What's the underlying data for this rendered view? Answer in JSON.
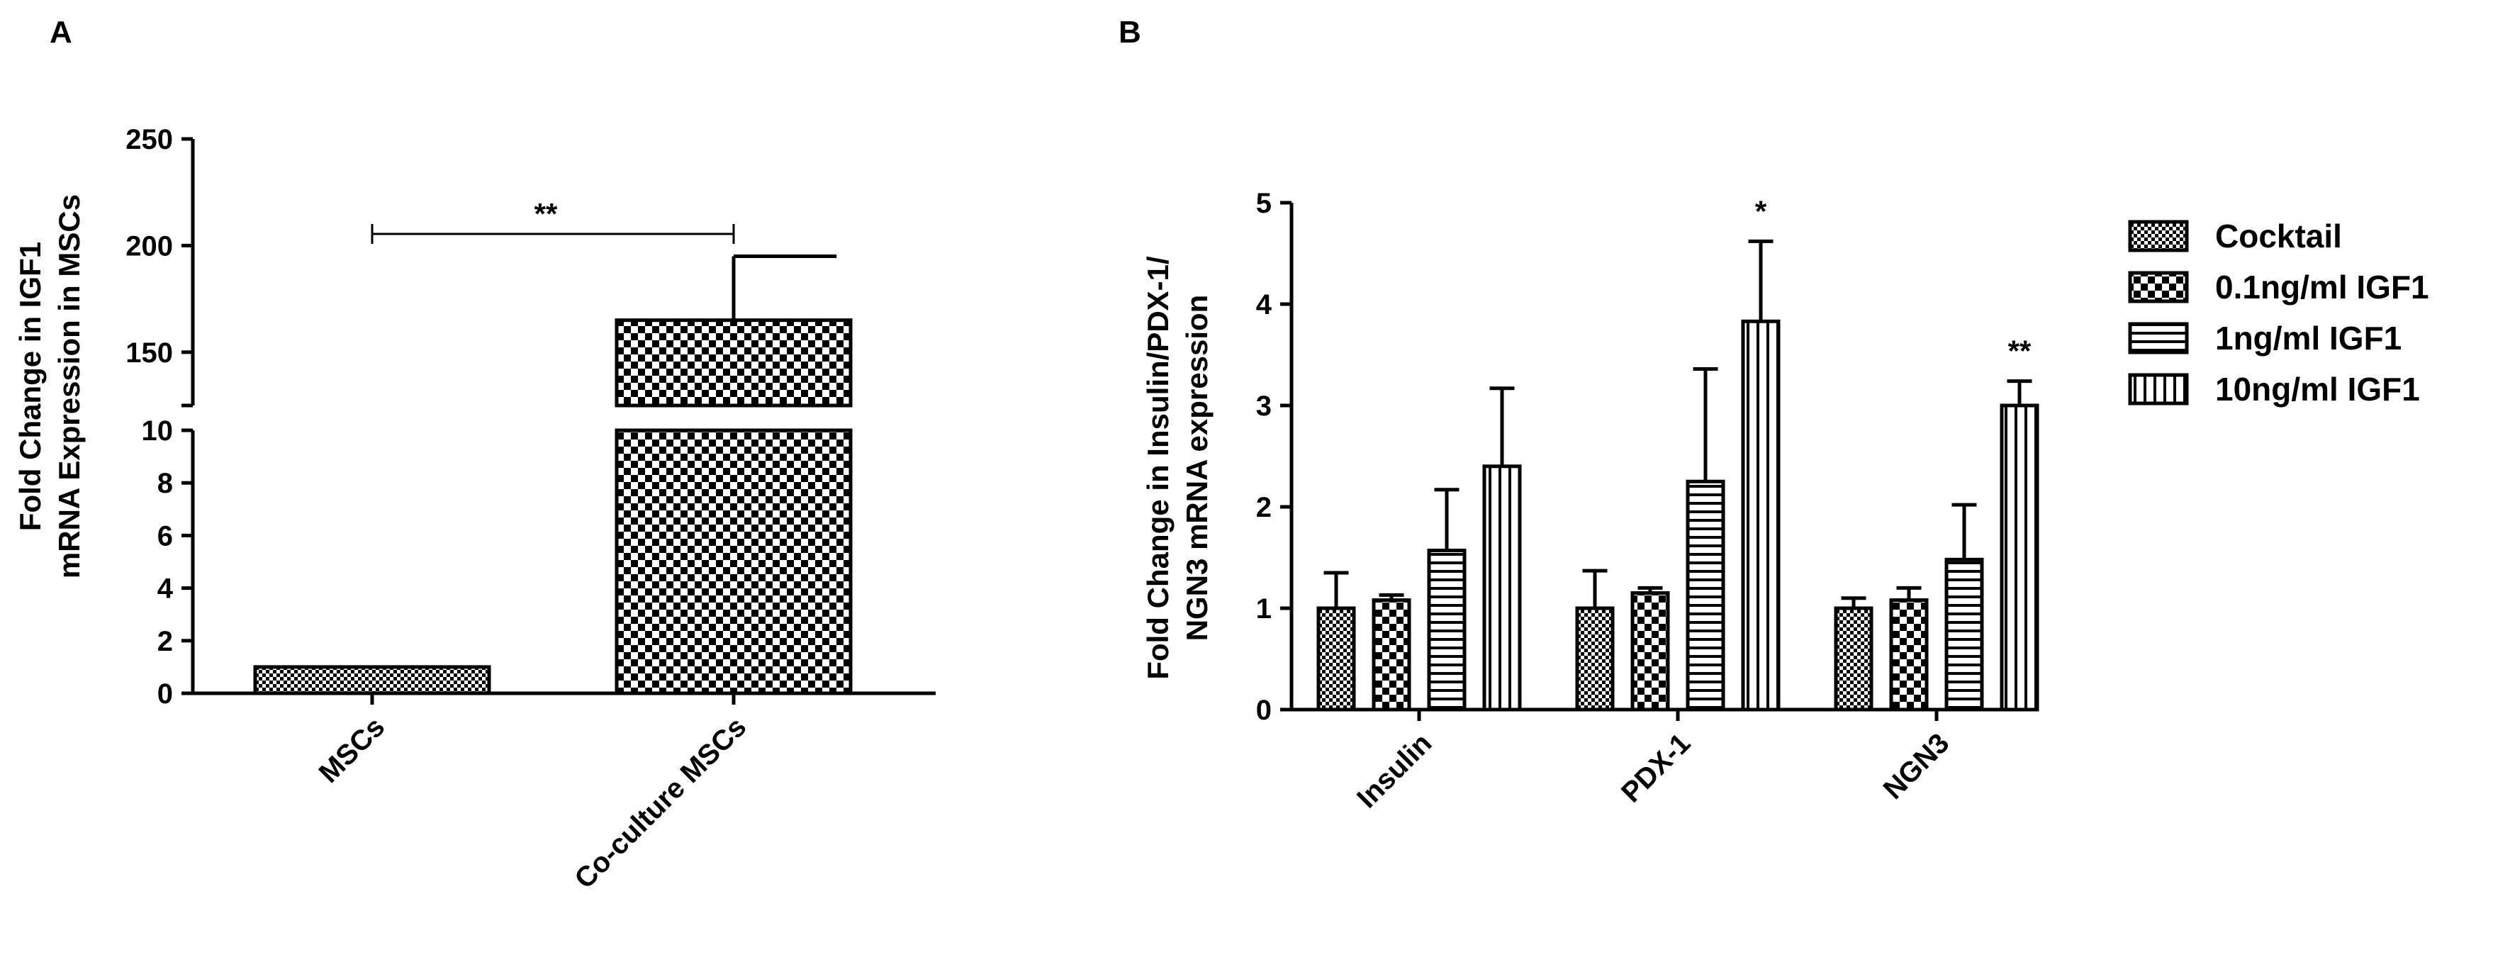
{
  "chart_data": [
    {
      "panel_label": "A",
      "type": "bar",
      "categories": [
        "MSCs",
        "Co-culture MSCs"
      ],
      "values": [
        1.0,
        165
      ],
      "error_upper": [
        1.05,
        195
      ],
      "patterns": [
        "fine-check",
        "large-check"
      ],
      "ylabel_lines": [
        "Fold Change in IGF1",
        "mRNA Expression in MSCs"
      ],
      "axis_break": {
        "lower": {
          "range": [
            0,
            10
          ],
          "ticks": [
            "0",
            "2",
            "4",
            "6",
            "8",
            "10"
          ]
        },
        "upper": {
          "range": [
            125,
            250
          ],
          "ticks": [
            "150",
            "200",
            "250"
          ]
        }
      },
      "significance": {
        "from": "MSCs",
        "to": "Co-culture MSCs",
        "label": "**"
      }
    },
    {
      "panel_label": "B",
      "type": "bar",
      "categories": [
        "Insulin",
        "PDX-1",
        "NGN3"
      ],
      "ylabel_lines": [
        "Fold Change in Insulin/PDX-1/",
        "NGN3 mRNA expression"
      ],
      "ylim": [
        0,
        5
      ],
      "yticks": [
        "0",
        "1",
        "2",
        "3",
        "4",
        "5"
      ],
      "legend_position": "right",
      "series": [
        {
          "name": "Cocktail",
          "pattern": "fine-check",
          "values": [
            1.0,
            1.0,
            1.0
          ],
          "error_upper": [
            1.35,
            1.37,
            1.1
          ]
        },
        {
          "name": "0.1ng/ml IGF1",
          "pattern": "large-check",
          "values": [
            1.08,
            1.15,
            1.08
          ],
          "error_upper": [
            1.13,
            1.2,
            1.2
          ]
        },
        {
          "name": "1ng/ml IGF1",
          "pattern": "horizontal-lines",
          "values": [
            1.57,
            2.25,
            1.48
          ],
          "error_upper": [
            2.17,
            3.36,
            2.02
          ]
        },
        {
          "name": "10ng/ml IGF1",
          "pattern": "vertical-lines",
          "values": [
            2.4,
            3.83,
            3.0
          ],
          "error_upper": [
            3.17,
            4.62,
            3.24
          ]
        }
      ],
      "significance_marks": [
        {
          "category": "PDX-1",
          "series": "10ng/ml IGF1",
          "label": "*"
        },
        {
          "category": "NGN3",
          "series": "10ng/ml IGF1",
          "label": "**"
        }
      ]
    }
  ]
}
